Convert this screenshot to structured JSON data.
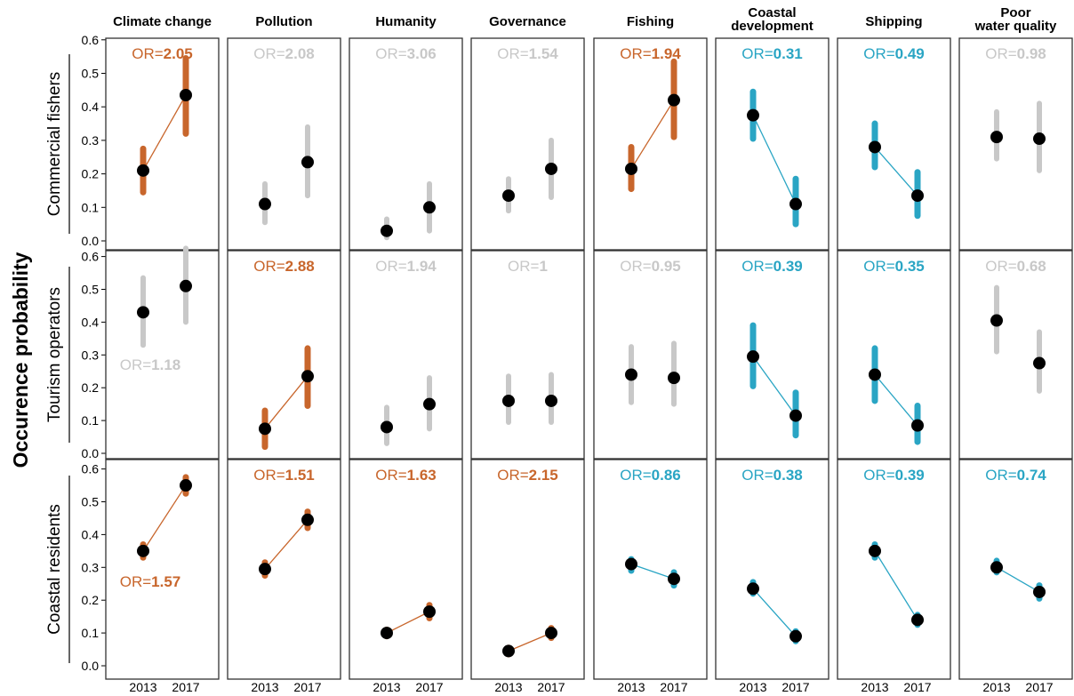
{
  "colors": {
    "increase": "#c8662c",
    "decrease": "#2aa5c4",
    "neutral": "#c8c8c8",
    "point": "#000000"
  },
  "chart_data": {
    "type": "scatter",
    "ylabel": "Occurence probability",
    "ylim": [
      0,
      0.6
    ],
    "yticks": [
      "0.0",
      "0.1",
      "0.2",
      "0.3",
      "0.4",
      "0.5",
      "0.6"
    ],
    "x": [
      "2013",
      "2017"
    ],
    "columns": [
      "Climate change",
      "Pollution",
      "Humanity",
      "Governance",
      "Fishing",
      "Coastal\ndevelopment",
      "Shipping",
      "Poor\nwater quality"
    ],
    "rows": [
      "Commercial fishers",
      "Tourism operators",
      "Coastal residents"
    ],
    "panels": [
      [
        {
          "or": "2.05",
          "trend": "increase",
          "values": [
            0.21,
            0.435
          ],
          "ci": [
            [
              0.145,
              0.275
            ],
            [
              0.32,
              0.545
            ]
          ]
        },
        {
          "or": "2.08",
          "trend": "neutral",
          "values": [
            0.11,
            0.235
          ],
          "ci": [
            [
              0.055,
              0.17
            ],
            [
              0.135,
              0.34
            ]
          ]
        },
        {
          "or": "3.06",
          "trend": "neutral",
          "values": [
            0.03,
            0.1
          ],
          "ci": [
            [
              0.01,
              0.065
            ],
            [
              0.03,
              0.17
            ]
          ]
        },
        {
          "or": "1.54",
          "trend": "neutral",
          "values": [
            0.135,
            0.215
          ],
          "ci": [
            [
              0.09,
              0.185
            ],
            [
              0.13,
              0.3
            ]
          ]
        },
        {
          "or": "1.94",
          "trend": "increase",
          "values": [
            0.215,
            0.42
          ],
          "ci": [
            [
              0.155,
              0.28
            ],
            [
              0.31,
              0.535
            ]
          ]
        },
        {
          "or": "0.31",
          "trend": "decrease",
          "values": [
            0.375,
            0.11
          ],
          "ci": [
            [
              0.305,
              0.445
            ],
            [
              0.05,
              0.185
            ]
          ]
        },
        {
          "or": "0.49",
          "trend": "decrease",
          "values": [
            0.28,
            0.135
          ],
          "ci": [
            [
              0.22,
              0.35
            ],
            [
              0.075,
              0.205
            ]
          ]
        },
        {
          "or": "0.98",
          "trend": "neutral",
          "values": [
            0.31,
            0.305
          ],
          "ci": [
            [
              0.245,
              0.385
            ],
            [
              0.21,
              0.41
            ]
          ]
        }
      ],
      [
        {
          "or": "1.18",
          "trend": "neutral",
          "values": [
            0.43,
            0.51
          ],
          "ci": [
            [
              0.33,
              0.535
            ],
            [
              0.4,
              0.625
            ]
          ]
        },
        {
          "or": "2.88",
          "trend": "increase",
          "values": [
            0.075,
            0.235
          ],
          "ci": [
            [
              0.02,
              0.13
            ],
            [
              0.145,
              0.32
            ]
          ]
        },
        {
          "or": "1.94",
          "trend": "neutral",
          "values": [
            0.08,
            0.15
          ],
          "ci": [
            [
              0.03,
              0.14
            ],
            [
              0.075,
              0.23
            ]
          ]
        },
        {
          "or": "1",
          "trend": "neutral",
          "values": [
            0.16,
            0.16
          ],
          "ci": [
            [
              0.095,
              0.235
            ],
            [
              0.095,
              0.24
            ]
          ]
        },
        {
          "or": "0.95",
          "trend": "neutral",
          "values": [
            0.24,
            0.23
          ],
          "ci": [
            [
              0.155,
              0.325
            ],
            [
              0.15,
              0.335
            ]
          ]
        },
        {
          "or": "0.39",
          "trend": "decrease",
          "values": [
            0.295,
            0.115
          ],
          "ci": [
            [
              0.205,
              0.39
            ],
            [
              0.055,
              0.185
            ]
          ]
        },
        {
          "or": "0.35",
          "trend": "decrease",
          "values": [
            0.24,
            0.085
          ],
          "ci": [
            [
              0.16,
              0.32
            ],
            [
              0.035,
              0.145
            ]
          ]
        },
        {
          "or": "0.68",
          "trend": "neutral",
          "values": [
            0.405,
            0.275
          ],
          "ci": [
            [
              0.31,
              0.505
            ],
            [
              0.19,
              0.37
            ]
          ]
        }
      ],
      [
        {
          "or": "1.57",
          "trend": "increase",
          "values": [
            0.35,
            0.55
          ],
          "ci": [
            [
              0.33,
              0.37
            ],
            [
              0.525,
              0.575
            ]
          ]
        },
        {
          "or": "1.51",
          "trend": "increase",
          "values": [
            0.295,
            0.445
          ],
          "ci": [
            [
              0.275,
              0.315
            ],
            [
              0.42,
              0.47
            ]
          ]
        },
        {
          "or": "1.63",
          "trend": "increase",
          "values": [
            0.1,
            0.165
          ],
          "ci": [
            [
              0.09,
              0.11
            ],
            [
              0.145,
              0.185
            ]
          ]
        },
        {
          "or": "2.15",
          "trend": "increase",
          "values": [
            0.045,
            0.1
          ],
          "ci": [
            [
              0.035,
              0.055
            ],
            [
              0.085,
              0.115
            ]
          ]
        },
        {
          "or": "0.86",
          "trend": "decrease",
          "values": [
            0.31,
            0.265
          ],
          "ci": [
            [
              0.29,
              0.325
            ],
            [
              0.245,
              0.285
            ]
          ]
        },
        {
          "or": "0.38",
          "trend": "decrease",
          "values": [
            0.235,
            0.09
          ],
          "ci": [
            [
              0.22,
              0.255
            ],
            [
              0.075,
              0.105
            ]
          ]
        },
        {
          "or": "0.39",
          "trend": "decrease",
          "values": [
            0.35,
            0.14
          ],
          "ci": [
            [
              0.33,
              0.37
            ],
            [
              0.125,
              0.155
            ]
          ]
        },
        {
          "or": "0.74",
          "trend": "decrease",
          "values": [
            0.3,
            0.225
          ],
          "ci": [
            [
              0.285,
              0.32
            ],
            [
              0.205,
              0.245
            ]
          ]
        }
      ]
    ]
  }
}
